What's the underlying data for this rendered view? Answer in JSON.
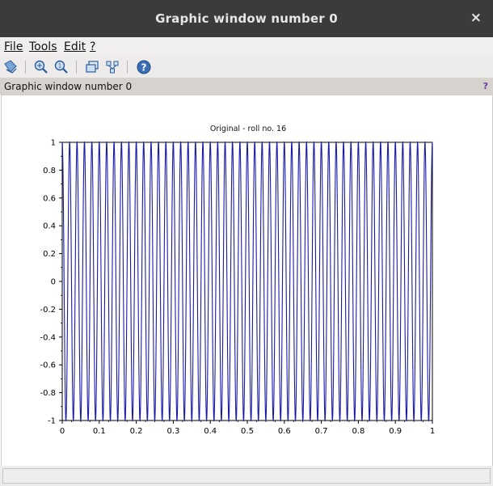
{
  "window": {
    "title": "Graphic window number 0",
    "close_glyph": "×"
  },
  "menu": {
    "items": [
      "File",
      "Tools",
      "Edit",
      "?"
    ]
  },
  "toolbar": {
    "icons": [
      "datatip-icon",
      "zoom-icon",
      "unzoom-icon",
      "rotate-icon",
      "axes-editor-icon",
      "help-icon"
    ]
  },
  "infobar": {
    "label": "Graphic window number 0",
    "help_glyph": "?"
  },
  "colors": {
    "signal": "#1a1aa8",
    "titlebar": "#3b3b3b"
  },
  "chart_data": {
    "type": "line",
    "title": "Original - roll no. 16",
    "xlabel": "",
    "ylabel": "",
    "xlim": [
      0,
      1
    ],
    "ylim": [
      -1,
      1
    ],
    "x_ticks": [
      "0",
      "0.1",
      "0.2",
      "0.3",
      "0.4",
      "0.5",
      "0.6",
      "0.7",
      "0.8",
      "0.9",
      "1"
    ],
    "y_ticks": [
      "1",
      "0.8",
      "0.6",
      "0.4",
      "0.2",
      "0",
      "-0.2",
      "-0.4",
      "-0.6",
      "-0.8",
      "-1"
    ],
    "grid": false,
    "series": [
      {
        "function": "cos",
        "frequency_cycles_per_unit": 50,
        "amplitude": 1,
        "x_start": 0,
        "x_end": 1
      }
    ]
  }
}
